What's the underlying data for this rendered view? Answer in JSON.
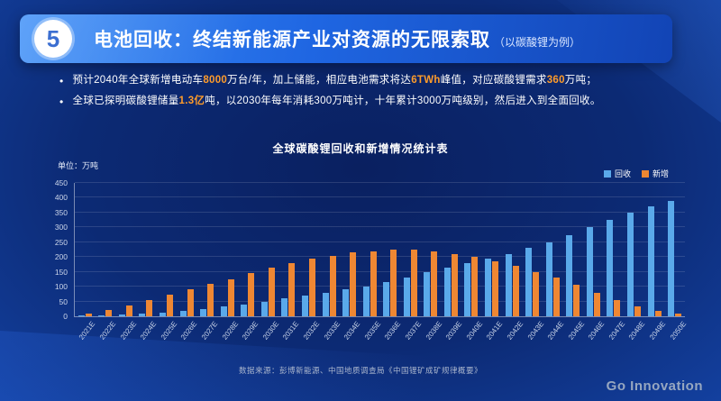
{
  "slide": {
    "number": "5",
    "title": "电池回收：终结新能源产业对资源的无限索取",
    "title_suffix": "（以碳酸锂为例）",
    "bullets": [
      {
        "segments": [
          {
            "t": "预计2040年全球新增电动车",
            "h": false
          },
          {
            "t": "8000",
            "h": true
          },
          {
            "t": "万台/年，加上储能，相应电池需求将达",
            "h": false
          },
          {
            "t": "6TWh",
            "h": true
          },
          {
            "t": "峰值，对应碳酸锂需求",
            "h": false
          },
          {
            "t": "360",
            "h": true
          },
          {
            "t": "万吨；",
            "h": false
          }
        ]
      },
      {
        "segments": [
          {
            "t": "全球已探明碳酸锂储量",
            "h": false
          },
          {
            "t": "1.3亿",
            "h": true
          },
          {
            "t": "吨，以2030年每年消耗300万吨计，十年累计3000万吨级别，然后进入到全面回收。",
            "h": false
          }
        ]
      }
    ],
    "footer_source": "数据来源：彭博新能源、中国地质调查局《中国锂矿成矿规律概要》",
    "brand": "Go Innovation"
  },
  "chart_data": {
    "type": "bar",
    "title": "全球碳酸锂回收和新增情况统计表",
    "unit_label": "单位：万吨",
    "xlabel": "",
    "ylabel": "万吨",
    "ylim": [
      0,
      450
    ],
    "ytick_step": 50,
    "grid": true,
    "legend_position": "top-right",
    "categories": [
      "2021E",
      "2022E",
      "2023E",
      "2024E",
      "2025E",
      "2026E",
      "2027E",
      "2028E",
      "2029E",
      "2030E",
      "2031E",
      "2032E",
      "2033E",
      "2034E",
      "2035E",
      "2036E",
      "2037E",
      "2038E",
      "2039E",
      "2040E",
      "2041E",
      "2042E",
      "2043E",
      "2044E",
      "2045E",
      "2046E",
      "2047E",
      "2048E",
      "2049E",
      "2050E"
    ],
    "series": [
      {
        "name": "回收",
        "color": "#5aa9ea",
        "values": [
          2,
          3,
          5,
          8,
          12,
          18,
          25,
          32,
          40,
          50,
          60,
          70,
          80,
          90,
          100,
          115,
          130,
          150,
          165,
          180,
          195,
          210,
          230,
          250,
          275,
          300,
          325,
          350,
          370,
          390
        ]
      },
      {
        "name": "新增",
        "color": "#ee8733",
        "values": [
          8,
          20,
          38,
          55,
          72,
          90,
          108,
          125,
          145,
          165,
          180,
          195,
          205,
          215,
          220,
          225,
          225,
          220,
          210,
          200,
          185,
          170,
          150,
          130,
          105,
          80,
          55,
          35,
          18,
          8
        ]
      }
    ]
  }
}
